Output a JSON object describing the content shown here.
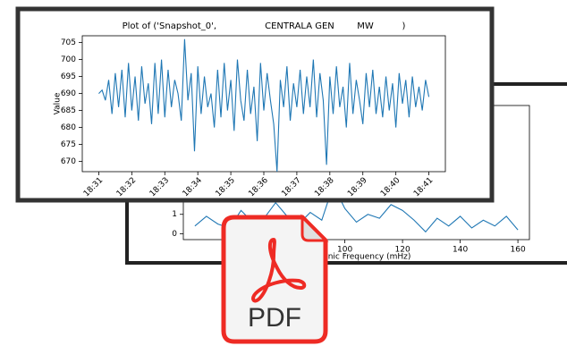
{
  "chart_data": [
    {
      "type": "line",
      "title": "Plot of ('Snapshot_0',                 CENTRALA GEN        MW          )",
      "ylabel": "Value",
      "x": [
        0,
        0.1,
        0.2,
        0.3,
        0.4,
        0.5,
        0.6,
        0.7,
        0.8,
        0.9,
        1,
        1.1,
        1.2,
        1.3,
        1.4,
        1.5,
        1.6,
        1.7,
        1.8,
        1.9,
        2,
        2.1,
        2.2,
        2.3,
        2.4,
        2.5,
        2.6,
        2.7,
        2.8,
        2.9,
        3,
        3.1,
        3.2,
        3.3,
        3.4,
        3.5,
        3.6,
        3.7,
        3.8,
        3.9,
        4,
        4.1,
        4.2,
        4.3,
        4.4,
        4.5,
        4.6,
        4.7,
        4.8,
        4.9,
        5,
        5.1,
        5.2,
        5.3,
        5.4,
        5.5,
        5.6,
        5.7,
        5.8,
        5.9,
        6,
        6.1,
        6.2,
        6.3,
        6.4,
        6.5,
        6.6,
        6.7,
        6.8,
        6.9,
        7,
        7.1,
        7.2,
        7.3,
        7.4,
        7.5,
        7.6,
        7.7,
        7.8,
        7.9,
        8,
        8.1,
        8.2,
        8.3,
        8.4,
        8.5,
        8.6,
        8.7,
        8.8,
        8.9,
        9,
        9.1,
        9.2,
        9.3,
        9.4,
        9.5,
        9.6,
        9.7,
        9.8,
        9.9,
        10
      ],
      "series": [
        {
          "color": "#1f77b4",
          "values": [
            690,
            691,
            688,
            694,
            684,
            696,
            686,
            697,
            683,
            699,
            685,
            695,
            682,
            698,
            687,
            693,
            681,
            699,
            684,
            700,
            683,
            697,
            686,
            694,
            690,
            682,
            706,
            688,
            696,
            673,
            698,
            684,
            695,
            686,
            690,
            680,
            697,
            683,
            699,
            685,
            694,
            679,
            700,
            688,
            682,
            697,
            684,
            692,
            676,
            699,
            685,
            696,
            688,
            681,
            667,
            694,
            686,
            698,
            682,
            693,
            686,
            697,
            684,
            695,
            686,
            700,
            683,
            696,
            688,
            669,
            695,
            684,
            698,
            686,
            692,
            680,
            699,
            684,
            694,
            688,
            681,
            696,
            686,
            697,
            684,
            692,
            683,
            695,
            685,
            693,
            680,
            696,
            687,
            694,
            683,
            695,
            686,
            692,
            685,
            694,
            689
          ]
        }
      ],
      "xlim": [
        -0.5,
        10.5
      ],
      "xticks": [
        {
          "value": 0,
          "label": "18:31"
        },
        {
          "value": 1,
          "label": "18:32"
        },
        {
          "value": 2,
          "label": "18:33"
        },
        {
          "value": 3,
          "label": "18:34"
        },
        {
          "value": 4,
          "label": "18:35"
        },
        {
          "value": 5,
          "label": "18:36"
        },
        {
          "value": 6,
          "label": "18:37"
        },
        {
          "value": 7,
          "label": "18:38"
        },
        {
          "value": 8,
          "label": "18:39"
        },
        {
          "value": 9,
          "label": "18:40"
        },
        {
          "value": 10,
          "label": "18:41"
        }
      ],
      "ylim": [
        667,
        707
      ],
      "yticks": [
        670,
        675,
        680,
        685,
        690,
        695,
        700,
        705
      ]
    },
    {
      "type": "line",
      "xlabel": "Harmonic Frequency (mHz)",
      "x": [
        48,
        52,
        56,
        60,
        64,
        68,
        72,
        76,
        80,
        84,
        88,
        92,
        96,
        100,
        104,
        108,
        112,
        116,
        120,
        124,
        128,
        132,
        136,
        140,
        144,
        148,
        152,
        156,
        160
      ],
      "series": [
        {
          "color": "#1f77b4",
          "values": [
            0.4,
            0.9,
            0.5,
            0.3,
            1.2,
            0.6,
            0.8,
            1.6,
            0.9,
            0.5,
            1.1,
            0.7,
            2.5,
            1.3,
            0.6,
            1.0,
            0.8,
            1.5,
            1.2,
            0.7,
            0.1,
            0.8,
            0.4,
            0.9,
            0.3,
            0.7,
            0.4,
            0.9,
            0.2
          ]
        }
      ],
      "xlim": [
        44,
        164
      ],
      "xticks": [
        100,
        120,
        140,
        160
      ],
      "ylim": [
        -0.3,
        6.6
      ],
      "yticks": [
        0,
        1,
        2
      ]
    }
  ],
  "icon": {
    "label": "PDF"
  }
}
